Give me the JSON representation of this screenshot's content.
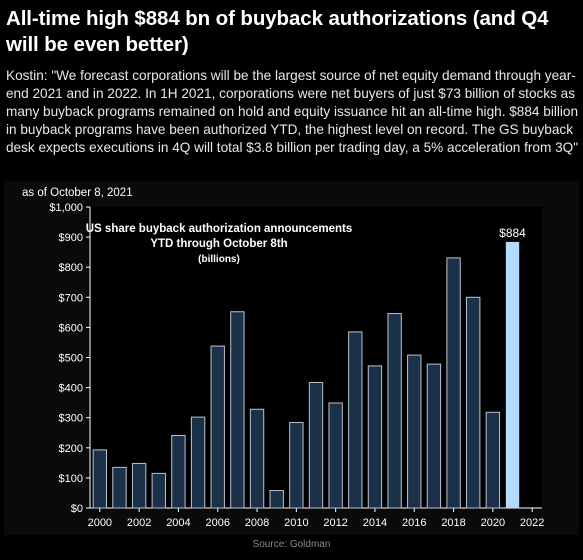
{
  "headline": "All-time high $884 bn of buyback authorizations (and Q4 will be even better)",
  "body": "Kostin: \"We forecast corporations will be the largest source of net equity demand through year-end 2021 and in 2022. In 1H 2021, corporations were net buyers of just $73 billion of stocks as many buyback programs remained on hold and equity issuance hit an all-time high. $884 billion in buyback programs have been authorized YTD, the highest level on record. The GS buyback desk expects executions in 4Q will total $3.8 billion per trading day, a 5% acceleration from 3Q\"",
  "source": "Source: Goldman",
  "chart_data": {
    "type": "bar",
    "date_note": "as of October 8, 2021",
    "title_lines": [
      "US share buyback authorization announcements",
      "YTD through October 8th",
      "(billions)"
    ],
    "categories": [
      "2000",
      "2001",
      "2002",
      "2003",
      "2004",
      "2005",
      "2006",
      "2007",
      "2008",
      "2009",
      "2010",
      "2011",
      "2012",
      "2013",
      "2014",
      "2015",
      "2016",
      "2017",
      "2018",
      "2019",
      "2020",
      "2021"
    ],
    "values": [
      193,
      135,
      148,
      115,
      241,
      302,
      538,
      652,
      328,
      58,
      284,
      417,
      349,
      585,
      472,
      646,
      508,
      478,
      831,
      700,
      318,
      884
    ],
    "highlight_index": 21,
    "highlight_label": "$884",
    "xticks": [
      2000,
      2002,
      2004,
      2006,
      2008,
      2010,
      2012,
      2014,
      2016,
      2018,
      2020,
      2022
    ],
    "yticks": [
      "$0",
      "$100",
      "$200",
      "$300",
      "$400",
      "$500",
      "$600",
      "$700",
      "$800",
      "$900",
      "$1,000"
    ],
    "ylim": [
      0,
      1000
    ],
    "xlim": [
      1999.5,
      2022.5
    ],
    "colors": {
      "bar": "#1b3148",
      "bar_stroke": "#b8c4d0",
      "highlight": "#b3dbff",
      "plot_bg": "#000000",
      "axis": "#ffffff"
    }
  }
}
